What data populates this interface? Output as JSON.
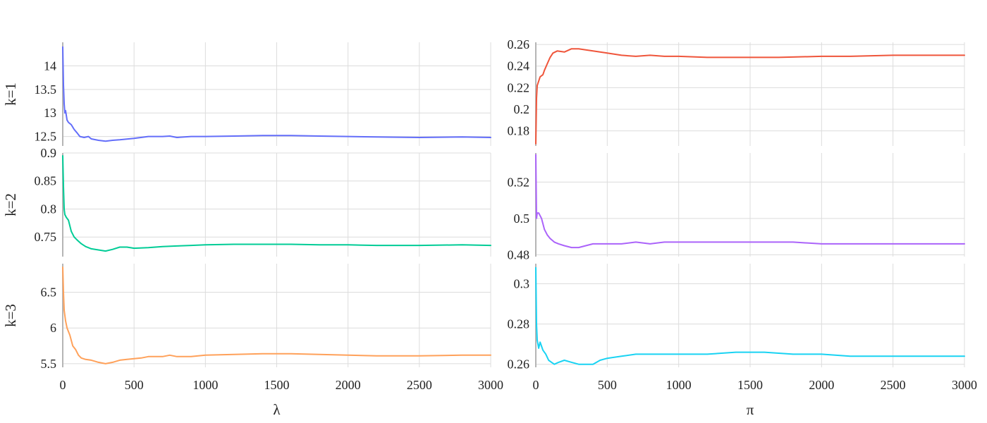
{
  "chart_data": {
    "type": "line",
    "layout": "3x2 trace-plot grid",
    "row_labels": [
      "k=1",
      "k=2",
      "k=3"
    ],
    "column_xlabels": [
      "λ",
      "π"
    ],
    "x_ticks": [
      0,
      500,
      1000,
      1500,
      2000,
      2500,
      3000
    ],
    "xlim": [
      0,
      3000
    ],
    "grid": true,
    "panels": [
      {
        "row": "k=1",
        "column": "λ",
        "color": "#636efa",
        "ylim": [
          12.3,
          14.5
        ],
        "y_ticks": [
          12.5,
          13,
          13.5,
          14
        ],
        "y_tick_labels": [
          "12.5",
          "13",
          "13.5",
          "14"
        ],
        "x": [
          0,
          5,
          10,
          15,
          20,
          30,
          40,
          60,
          80,
          100,
          120,
          150,
          180,
          200,
          250,
          300,
          350,
          400,
          500,
          600,
          700,
          750,
          800,
          900,
          1000,
          1200,
          1400,
          1600,
          1800,
          2000,
          2200,
          2500,
          2800,
          3000
        ],
        "values": [
          14.4,
          13.6,
          13.2,
          13.0,
          13.05,
          12.85,
          12.8,
          12.75,
          12.65,
          12.58,
          12.5,
          12.48,
          12.5,
          12.45,
          12.42,
          12.4,
          12.42,
          12.43,
          12.46,
          12.5,
          12.5,
          12.51,
          12.48,
          12.5,
          12.5,
          12.51,
          12.52,
          12.52,
          12.51,
          12.5,
          12.49,
          12.48,
          12.49,
          12.48
        ]
      },
      {
        "row": "k=1",
        "column": "π",
        "color": "#ef553b",
        "ylim": [
          0.166,
          0.262
        ],
        "y_ticks": [
          0.18,
          0.2,
          0.22,
          0.24,
          0.26
        ],
        "y_tick_labels": [
          "0.18",
          "0.2",
          "0.22",
          "0.24",
          "0.26"
        ],
        "x": [
          0,
          5,
          10,
          20,
          30,
          50,
          60,
          80,
          100,
          120,
          150,
          200,
          250,
          300,
          350,
          400,
          500,
          600,
          700,
          800,
          900,
          1000,
          1200,
          1400,
          1500,
          1700,
          2000,
          2200,
          2500,
          2800,
          3000
        ],
        "values": [
          0.168,
          0.21,
          0.222,
          0.226,
          0.23,
          0.232,
          0.236,
          0.242,
          0.248,
          0.252,
          0.254,
          0.253,
          0.256,
          0.256,
          0.255,
          0.254,
          0.252,
          0.25,
          0.249,
          0.25,
          0.249,
          0.249,
          0.248,
          0.248,
          0.248,
          0.248,
          0.249,
          0.249,
          0.25,
          0.25,
          0.25
        ]
      },
      {
        "row": "k=2",
        "column": "λ",
        "color": "#00cc96",
        "ylim": [
          0.715,
          0.9
        ],
        "y_ticks": [
          0.75,
          0.8,
          0.85,
          0.9
        ],
        "y_tick_labels": [
          "0.75",
          "0.8",
          "0.85",
          "0.9"
        ],
        "x": [
          0,
          5,
          10,
          15,
          25,
          40,
          60,
          80,
          100,
          130,
          160,
          200,
          250,
          300,
          350,
          400,
          450,
          500,
          600,
          700,
          800,
          900,
          1000,
          1200,
          1400,
          1600,
          1800,
          2000,
          2200,
          2500,
          2800,
          3000
        ],
        "values": [
          0.895,
          0.84,
          0.8,
          0.79,
          0.785,
          0.78,
          0.76,
          0.75,
          0.745,
          0.738,
          0.733,
          0.729,
          0.727,
          0.725,
          0.728,
          0.732,
          0.732,
          0.73,
          0.731,
          0.733,
          0.734,
          0.735,
          0.736,
          0.737,
          0.737,
          0.737,
          0.736,
          0.736,
          0.735,
          0.735,
          0.736,
          0.735
        ]
      },
      {
        "row": "k=2",
        "column": "π",
        "color": "#ab63fa",
        "ylim": [
          0.479,
          0.536
        ],
        "y_ticks": [
          0.48,
          0.5,
          0.52
        ],
        "y_tick_labels": [
          "0.48",
          "0.5",
          "0.52"
        ],
        "x": [
          0,
          5,
          10,
          20,
          40,
          60,
          80,
          100,
          130,
          160,
          200,
          250,
          300,
          350,
          400,
          450,
          500,
          600,
          700,
          800,
          900,
          1000,
          1200,
          1400,
          1500,
          1600,
          1800,
          2000,
          2200,
          2500,
          2800,
          3000
        ],
        "values": [
          0.535,
          0.5,
          0.503,
          0.503,
          0.5,
          0.494,
          0.491,
          0.489,
          0.487,
          0.486,
          0.485,
          0.484,
          0.484,
          0.485,
          0.486,
          0.486,
          0.486,
          0.486,
          0.487,
          0.486,
          0.487,
          0.487,
          0.487,
          0.487,
          0.487,
          0.487,
          0.487,
          0.486,
          0.486,
          0.486,
          0.486,
          0.486
        ]
      },
      {
        "row": "k=3",
        "column": "λ",
        "color": "#ffa15a",
        "ylim": [
          5.45,
          6.9
        ],
        "y_ticks": [
          5.5,
          6,
          6.5
        ],
        "y_tick_labels": [
          "5.5",
          "6",
          "6.5"
        ],
        "x": [
          0,
          5,
          10,
          20,
          30,
          50,
          70,
          90,
          110,
          130,
          160,
          200,
          250,
          300,
          350,
          400,
          450,
          500,
          550,
          600,
          700,
          750,
          800,
          900,
          1000,
          1200,
          1400,
          1600,
          1800,
          2000,
          2200,
          2500,
          2800,
          3000
        ],
        "values": [
          6.85,
          6.5,
          6.25,
          6.1,
          6.0,
          5.9,
          5.75,
          5.7,
          5.62,
          5.58,
          5.56,
          5.55,
          5.52,
          5.5,
          5.52,
          5.55,
          5.56,
          5.57,
          5.58,
          5.6,
          5.6,
          5.62,
          5.6,
          5.6,
          5.62,
          5.63,
          5.64,
          5.64,
          5.63,
          5.62,
          5.61,
          5.61,
          5.62,
          5.62
        ]
      },
      {
        "row": "k=3",
        "column": "π",
        "color": "#19d3f3",
        "ylim": [
          0.2585,
          0.31
        ],
        "y_ticks": [
          0.26,
          0.28,
          0.3
        ],
        "y_tick_labels": [
          "0.26",
          "0.28",
          "0.3"
        ],
        "x": [
          0,
          5,
          10,
          20,
          30,
          40,
          50,
          70,
          90,
          110,
          130,
          160,
          200,
          250,
          300,
          350,
          400,
          450,
          500,
          600,
          700,
          800,
          900,
          1000,
          1100,
          1200,
          1400,
          1500,
          1600,
          1800,
          2000,
          2200,
          2500,
          2800,
          3000
        ],
        "values": [
          0.308,
          0.28,
          0.272,
          0.268,
          0.271,
          0.269,
          0.267,
          0.265,
          0.262,
          0.261,
          0.26,
          0.261,
          0.262,
          0.261,
          0.26,
          0.26,
          0.26,
          0.262,
          0.263,
          0.264,
          0.265,
          0.265,
          0.265,
          0.265,
          0.265,
          0.265,
          0.266,
          0.266,
          0.266,
          0.265,
          0.265,
          0.264,
          0.264,
          0.264,
          0.264
        ]
      }
    ]
  }
}
